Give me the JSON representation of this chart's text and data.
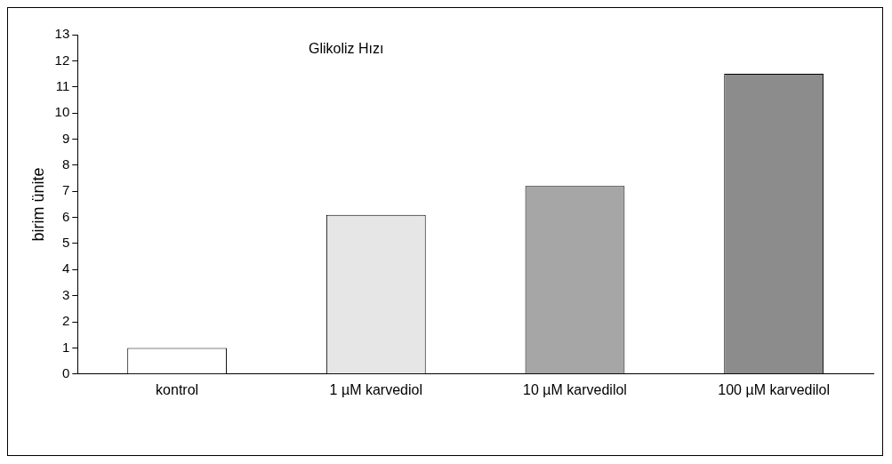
{
  "chart_data": {
    "type": "bar",
    "title": "Glikoliz Hızı",
    "ylabel": "birim ünite",
    "categories": [
      "kontrol",
      "1 µM karvediol",
      "10 µM karvedilol",
      "100 µM karvedilol"
    ],
    "values": [
      1.0,
      6.1,
      7.2,
      11.5
    ],
    "colors": [
      "#ffffff",
      "#e6e6e6",
      "#a6a6a6",
      "#8c8c8c"
    ],
    "ylim": [
      0,
      13
    ],
    "yticks": [
      0,
      1,
      2,
      3,
      4,
      5,
      6,
      7,
      8,
      9,
      10,
      11,
      12,
      13
    ],
    "grid": false,
    "legend": false
  }
}
